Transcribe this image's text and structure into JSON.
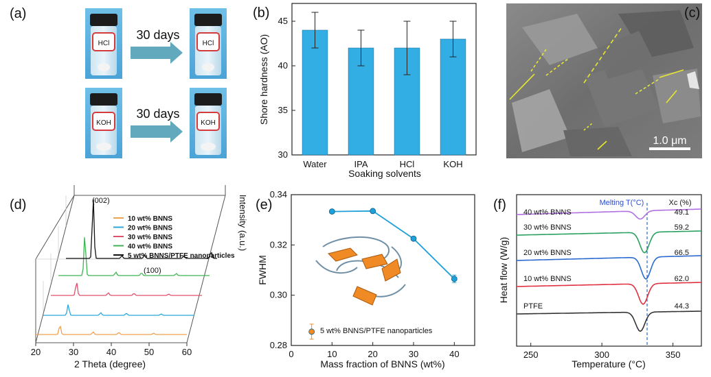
{
  "panels": {
    "a": {
      "label": "(a)",
      "arrow_text_top": "30 days",
      "arrow_text_bottom": "30 days",
      "vial_labels": [
        "HCl",
        "HCl",
        "KOH",
        "KOH"
      ]
    },
    "c": {
      "label": "(c)",
      "scale_bar": "1.0 μm"
    }
  },
  "chart_data": [
    {
      "panel": "(b)",
      "type": "bar",
      "categories": [
        "Water",
        "IPA",
        "HCl",
        "KOH"
      ],
      "values": [
        44,
        42,
        42,
        43
      ],
      "errors": [
        2,
        2,
        3,
        2
      ],
      "xlabel": "Soaking solvents",
      "ylabel": "Shore hardness (AO)",
      "ylim": [
        30,
        47
      ],
      "yticks": [
        "30",
        "35",
        "40",
        "45"
      ],
      "bar_color": "#33aee5"
    },
    {
      "panel": "(d)",
      "type": "line",
      "xlabel": "2 Theta (degree)",
      "ylabel": "Intensity (a.u.)",
      "xlim": [
        20,
        60
      ],
      "xticks": [
        "20",
        "30",
        "40",
        "50",
        "60"
      ],
      "series": [
        {
          "name": "10 wt% BNNS",
          "color": "#f0a050"
        },
        {
          "name": "20 wt% BNNS",
          "color": "#2aa8dc"
        },
        {
          "name": "30 wt% BNNS",
          "color": "#e0506a"
        },
        {
          "name": "40 wt% BNNS",
          "color": "#3cb550"
        },
        {
          "name": "5 wt% BNNS/PTFE nanoparticles",
          "color": "#111111"
        }
      ],
      "annotations": [
        "(002)",
        "(100)"
      ]
    },
    {
      "panel": "(e)",
      "type": "scatter",
      "xlabel": "Mass fraction of BNNS (wt%)",
      "ylabel": "FWHM",
      "xlim": [
        0,
        45
      ],
      "ylim": [
        0.28,
        0.34
      ],
      "xticks": [
        "0",
        "10",
        "20",
        "30",
        "40"
      ],
      "yticks": [
        "0.28",
        "0.30",
        "0.32",
        "0.34"
      ],
      "series": [
        {
          "name": "BNNS",
          "x": [
            10,
            20,
            30,
            40
          ],
          "y": [
            0.3333,
            0.3335,
            0.3225,
            0.3065
          ],
          "errors": [
            0.0008,
            0.0005,
            0.0005,
            0.0015
          ],
          "color": "#1fa0d8"
        },
        {
          "name": "5 wt% BNNS/PTFE nanoparticles",
          "x": [
            5
          ],
          "y": [
            0.2855
          ],
          "errors": [
            0.003
          ],
          "color": "#f08a24"
        }
      ]
    },
    {
      "panel": "(f)",
      "type": "line",
      "xlabel": "Temperature (°C)",
      "ylabel": "Heat flow (W/g)",
      "xlim": [
        240,
        370
      ],
      "xticks": [
        "250",
        "300",
        "350"
      ],
      "melting_label": "Melting T(°C)",
      "xc_header": "Xc (%)",
      "series": [
        {
          "name": "40 wt% BNNS",
          "xc": "49.1",
          "color": "#b070e0"
        },
        {
          "name": "30 wt% BNNS",
          "xc": "59.2",
          "color": "#2aa060"
        },
        {
          "name": "20 wt% BNNS",
          "xc": "66.5",
          "color": "#2a6ad0"
        },
        {
          "name": "10 wt% BNNS",
          "xc": "62.0",
          "color": "#e03040"
        },
        {
          "name": "PTFE",
          "xc": "44.3",
          "color": "#333333"
        }
      ]
    }
  ]
}
